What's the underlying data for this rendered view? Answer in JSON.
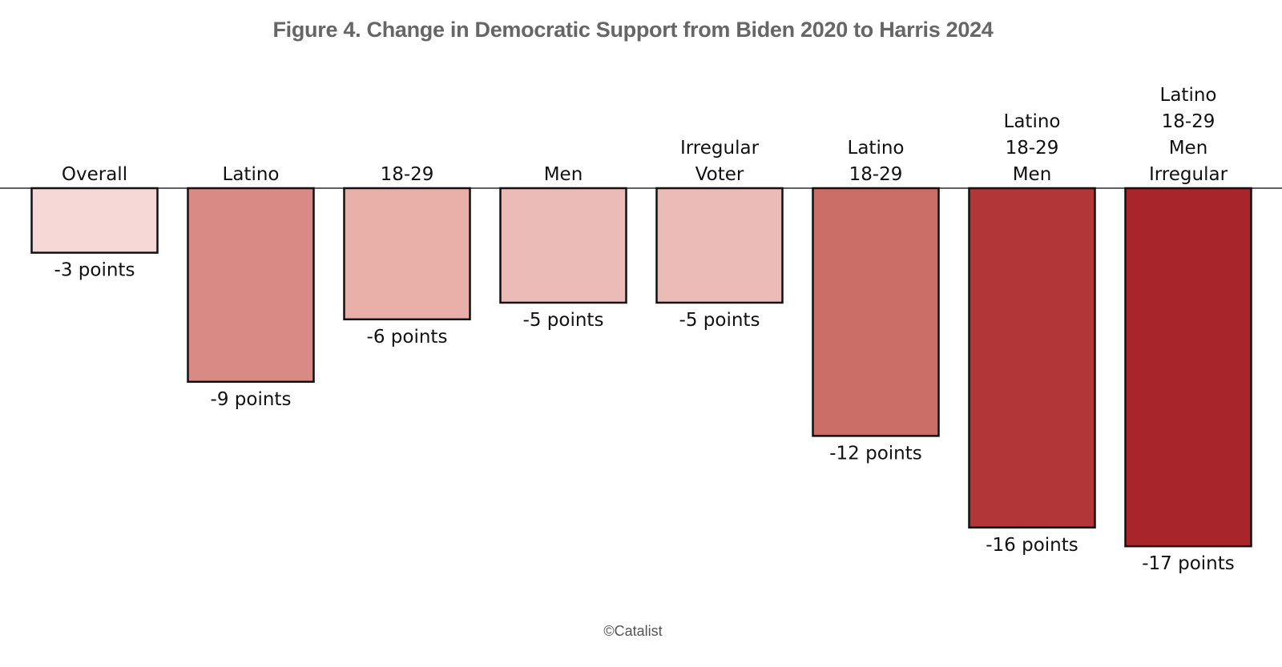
{
  "chart_data": {
    "type": "bar",
    "title": "Figure 4. Change in Democratic Support from Biden 2020 to Harris 2024",
    "categories": [
      [
        "Overall"
      ],
      [
        "Latino"
      ],
      [
        "18-29"
      ],
      [
        "Men"
      ],
      [
        "Irregular",
        "Voter"
      ],
      [
        "Latino",
        "18-29"
      ],
      [
        "Latino",
        "18-29",
        "Men"
      ],
      [
        "Latino",
        "18-29",
        "Men",
        "Irregular"
      ]
    ],
    "values": [
      -3.1,
      -9.3,
      -6.3,
      -5.5,
      -5.5,
      -11.9,
      -16.3,
      -17.2
    ],
    "value_labels": [
      "-3 points",
      "-9 points",
      "-6 points",
      "-5 points",
      "-5 points",
      "-12 points",
      "-16 points",
      "-17 points"
    ],
    "colors": [
      "#f6d9d6",
      "#d98a84",
      "#e9b0aa",
      "#ebbbb7",
      "#ebbbb7",
      "#cc6e68",
      "#b23538",
      "#a8252c"
    ],
    "xlabel": "",
    "ylabel": "",
    "ylim": [
      -18,
      0
    ],
    "grid": false,
    "legend": "none"
  },
  "footer": "©Catalist"
}
